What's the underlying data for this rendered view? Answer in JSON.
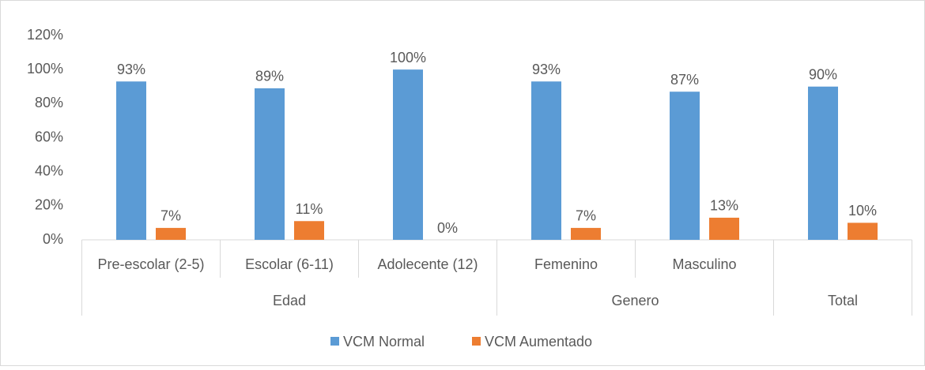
{
  "chart_data": {
    "type": "bar",
    "categories": [
      "Pre-escolar (2-5)",
      "Escolar (6-11)",
      "Adolecente (12)",
      "Femenino",
      "Masculino",
      null
    ],
    "category_groups": [
      "Edad",
      "Edad",
      "Edad",
      "Genero",
      "Genero",
      "Total"
    ],
    "series": [
      {
        "name": "VCM Normal",
        "color": "#5b9bd5",
        "values": [
          93,
          89,
          100,
          93,
          87,
          90
        ],
        "value_labels": [
          "93%",
          "89%",
          "100%",
          "93%",
          "87%",
          "90%"
        ]
      },
      {
        "name": "VCM Aumentado",
        "color": "#ed7d31",
        "values": [
          7,
          11,
          0,
          7,
          13,
          10
        ],
        "value_labels": [
          "7%",
          "11%",
          "0%",
          "7%",
          "13%",
          "10%"
        ]
      }
    ],
    "ylim": [
      0,
      120
    ],
    "yticks": [
      {
        "value": 0,
        "label": "0%"
      },
      {
        "value": 20,
        "label": "20%"
      },
      {
        "value": 40,
        "label": "40%"
      },
      {
        "value": 60,
        "label": "60%"
      },
      {
        "value": 80,
        "label": "80%"
      },
      {
        "value": 100,
        "label": "100%"
      },
      {
        "value": 120,
        "label": "120%"
      }
    ],
    "grid": false,
    "legend": "bottom"
  }
}
